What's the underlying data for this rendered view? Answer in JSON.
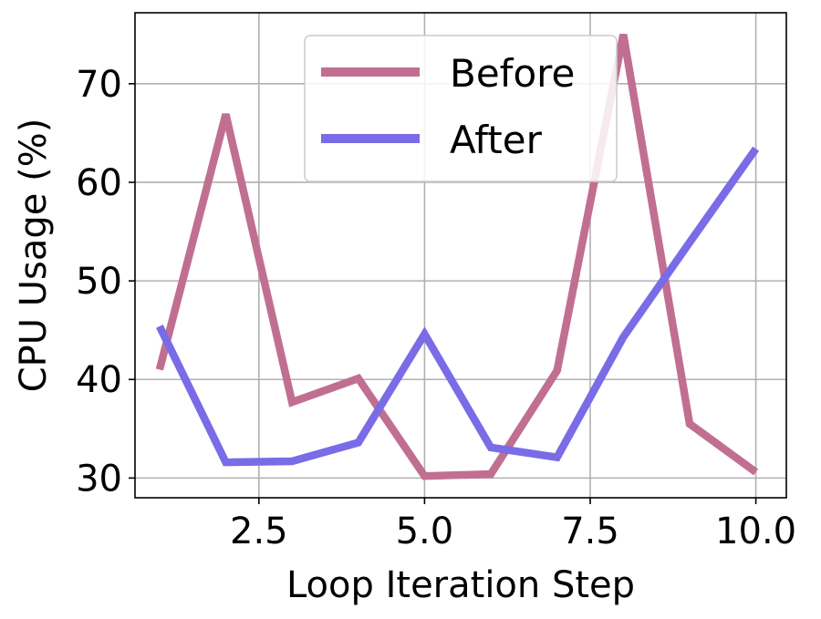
{
  "chart_data": {
    "type": "line",
    "xlabel": "Loop Iteration Step",
    "ylabel": "CPU Usage (%)",
    "xlim": [
      0.63,
      10.46
    ],
    "ylim": [
      28.0,
      77.2
    ],
    "xticks": [
      2.5,
      5.0,
      7.5,
      10.0
    ],
    "xtick_labels": [
      "2.5",
      "5.0",
      "7.5",
      "10.0"
    ],
    "yticks": [
      30,
      40,
      50,
      60,
      70
    ],
    "ytick_labels": [
      "30",
      "40",
      "50",
      "60",
      "70"
    ],
    "grid": true,
    "legend_position": "upper center",
    "x": [
      1,
      2,
      3,
      4,
      5,
      6,
      7,
      8,
      9,
      10
    ],
    "series": [
      {
        "name": "Before",
        "color": "#c16f91",
        "values": [
          41.0,
          66.9,
          37.7,
          40.1,
          30.2,
          30.4,
          40.9,
          75.0,
          35.5,
          30.6
        ]
      },
      {
        "name": "After",
        "color": "#7a6be6",
        "values": [
          45.4,
          31.6,
          31.7,
          33.6,
          44.6,
          33.1,
          32.1,
          44.3,
          53.9,
          63.4
        ]
      }
    ]
  }
}
